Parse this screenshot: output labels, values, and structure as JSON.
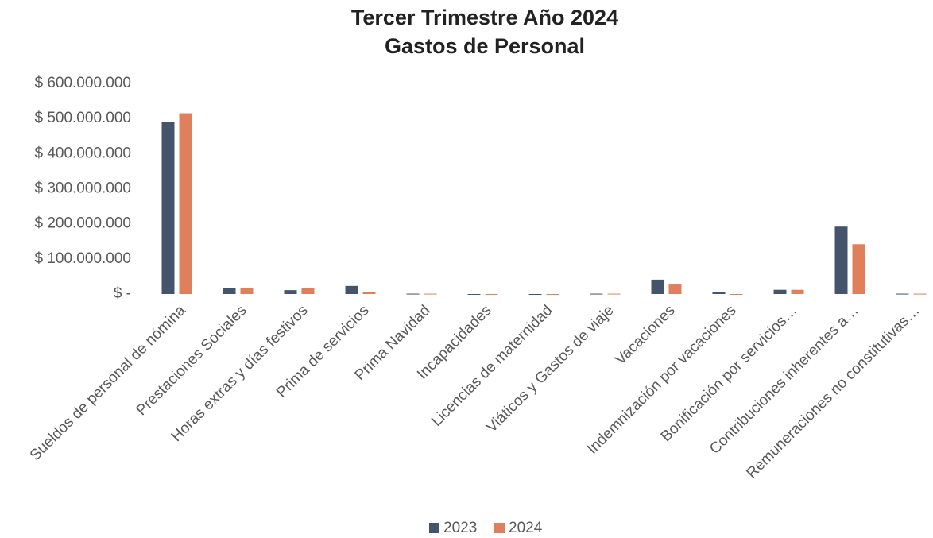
{
  "chart_data": {
    "type": "bar",
    "title": "Tercer Trimestre Año 2024",
    "subtitle": "Gastos de Personal",
    "categories": [
      "Sueldos de personal de nómina",
      "Prestaciones Sociales",
      "Horas extras y días festivos",
      "Prima de servicios",
      "Prima Navidad",
      "Incapacidades",
      "Licencias de maternidad",
      "Viáticos y Gastos de viaje",
      "Vacaciones",
      "Indemnización por vacaciones",
      "Bonificación por servicios…",
      "Contribuciones inherentes a…",
      "Remuneraciones no constitutivas…"
    ],
    "series": [
      {
        "name": "2023",
        "color": "#44546a",
        "values": [
          490000000,
          16000000,
          11000000,
          23000000,
          1000000,
          0,
          0,
          1000000,
          41000000,
          5000000,
          12000000,
          192000000,
          1000000
        ]
      },
      {
        "name": "2024",
        "color": "#e07f5c",
        "values": [
          515000000,
          18000000,
          18000000,
          5000000,
          1000000,
          0,
          0,
          1000000,
          27000000,
          0,
          12000000,
          142000000,
          1000000
        ]
      }
    ],
    "ylim": [
      0,
      600000000
    ],
    "yticks": [
      {
        "value": 0,
        "label": "$ -"
      },
      {
        "value": 100000000,
        "label": "$ 100.000.000"
      },
      {
        "value": 200000000,
        "label": "$ 200.000.000"
      },
      {
        "value": 300000000,
        "label": "$ 300.000.000"
      },
      {
        "value": 400000000,
        "label": "$ 400.000.000"
      },
      {
        "value": 500000000,
        "label": "$ 500.000.000"
      },
      {
        "value": 600000000,
        "label": "$ 600.000.000"
      }
    ],
    "grid": false,
    "legend": "bottom"
  }
}
